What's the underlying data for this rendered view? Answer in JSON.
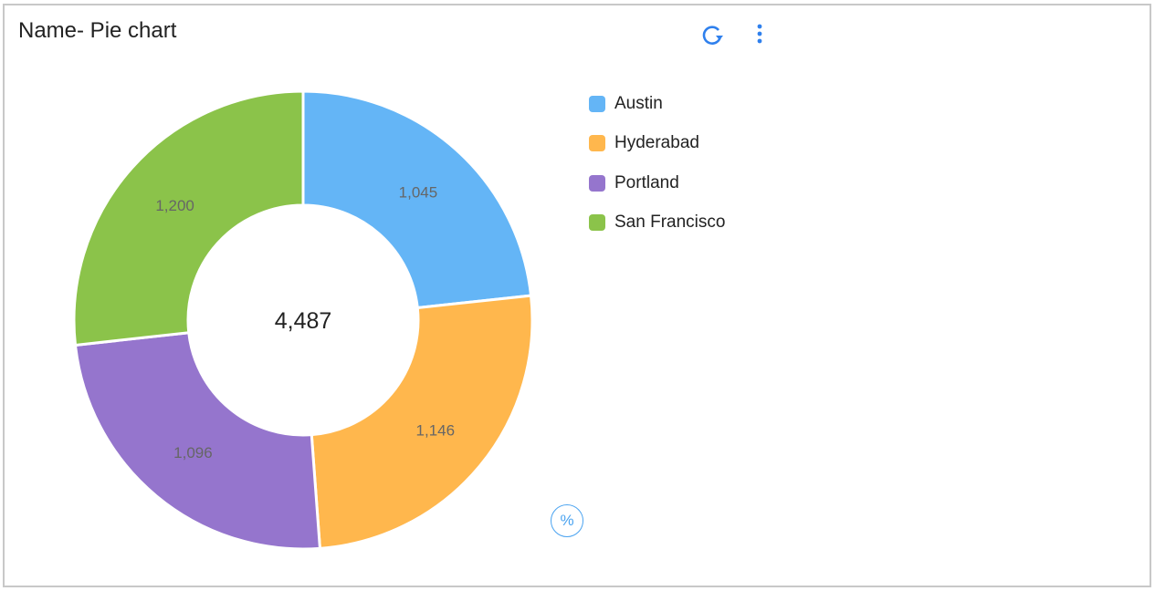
{
  "header": {
    "title": "Name- Pie chart",
    "refresh_icon": "refresh-icon",
    "menu_icon": "more-vertical-icon"
  },
  "percent_toggle": {
    "label": "%"
  },
  "colors": {
    "accent": "#2f80ed"
  },
  "chart_data": {
    "type": "pie",
    "variant": "donut",
    "categories": [
      "Austin",
      "Hyderabad",
      "Portland",
      "San Francisco"
    ],
    "values": [
      1045,
      1146,
      1096,
      1200
    ],
    "value_labels": [
      "1,045",
      "1,146",
      "1,096",
      "1,200"
    ],
    "colors": [
      "#64b5f6",
      "#ffb74d",
      "#9575cd",
      "#8bc34a"
    ],
    "center_label": "4,487",
    "legend_position": "right"
  }
}
